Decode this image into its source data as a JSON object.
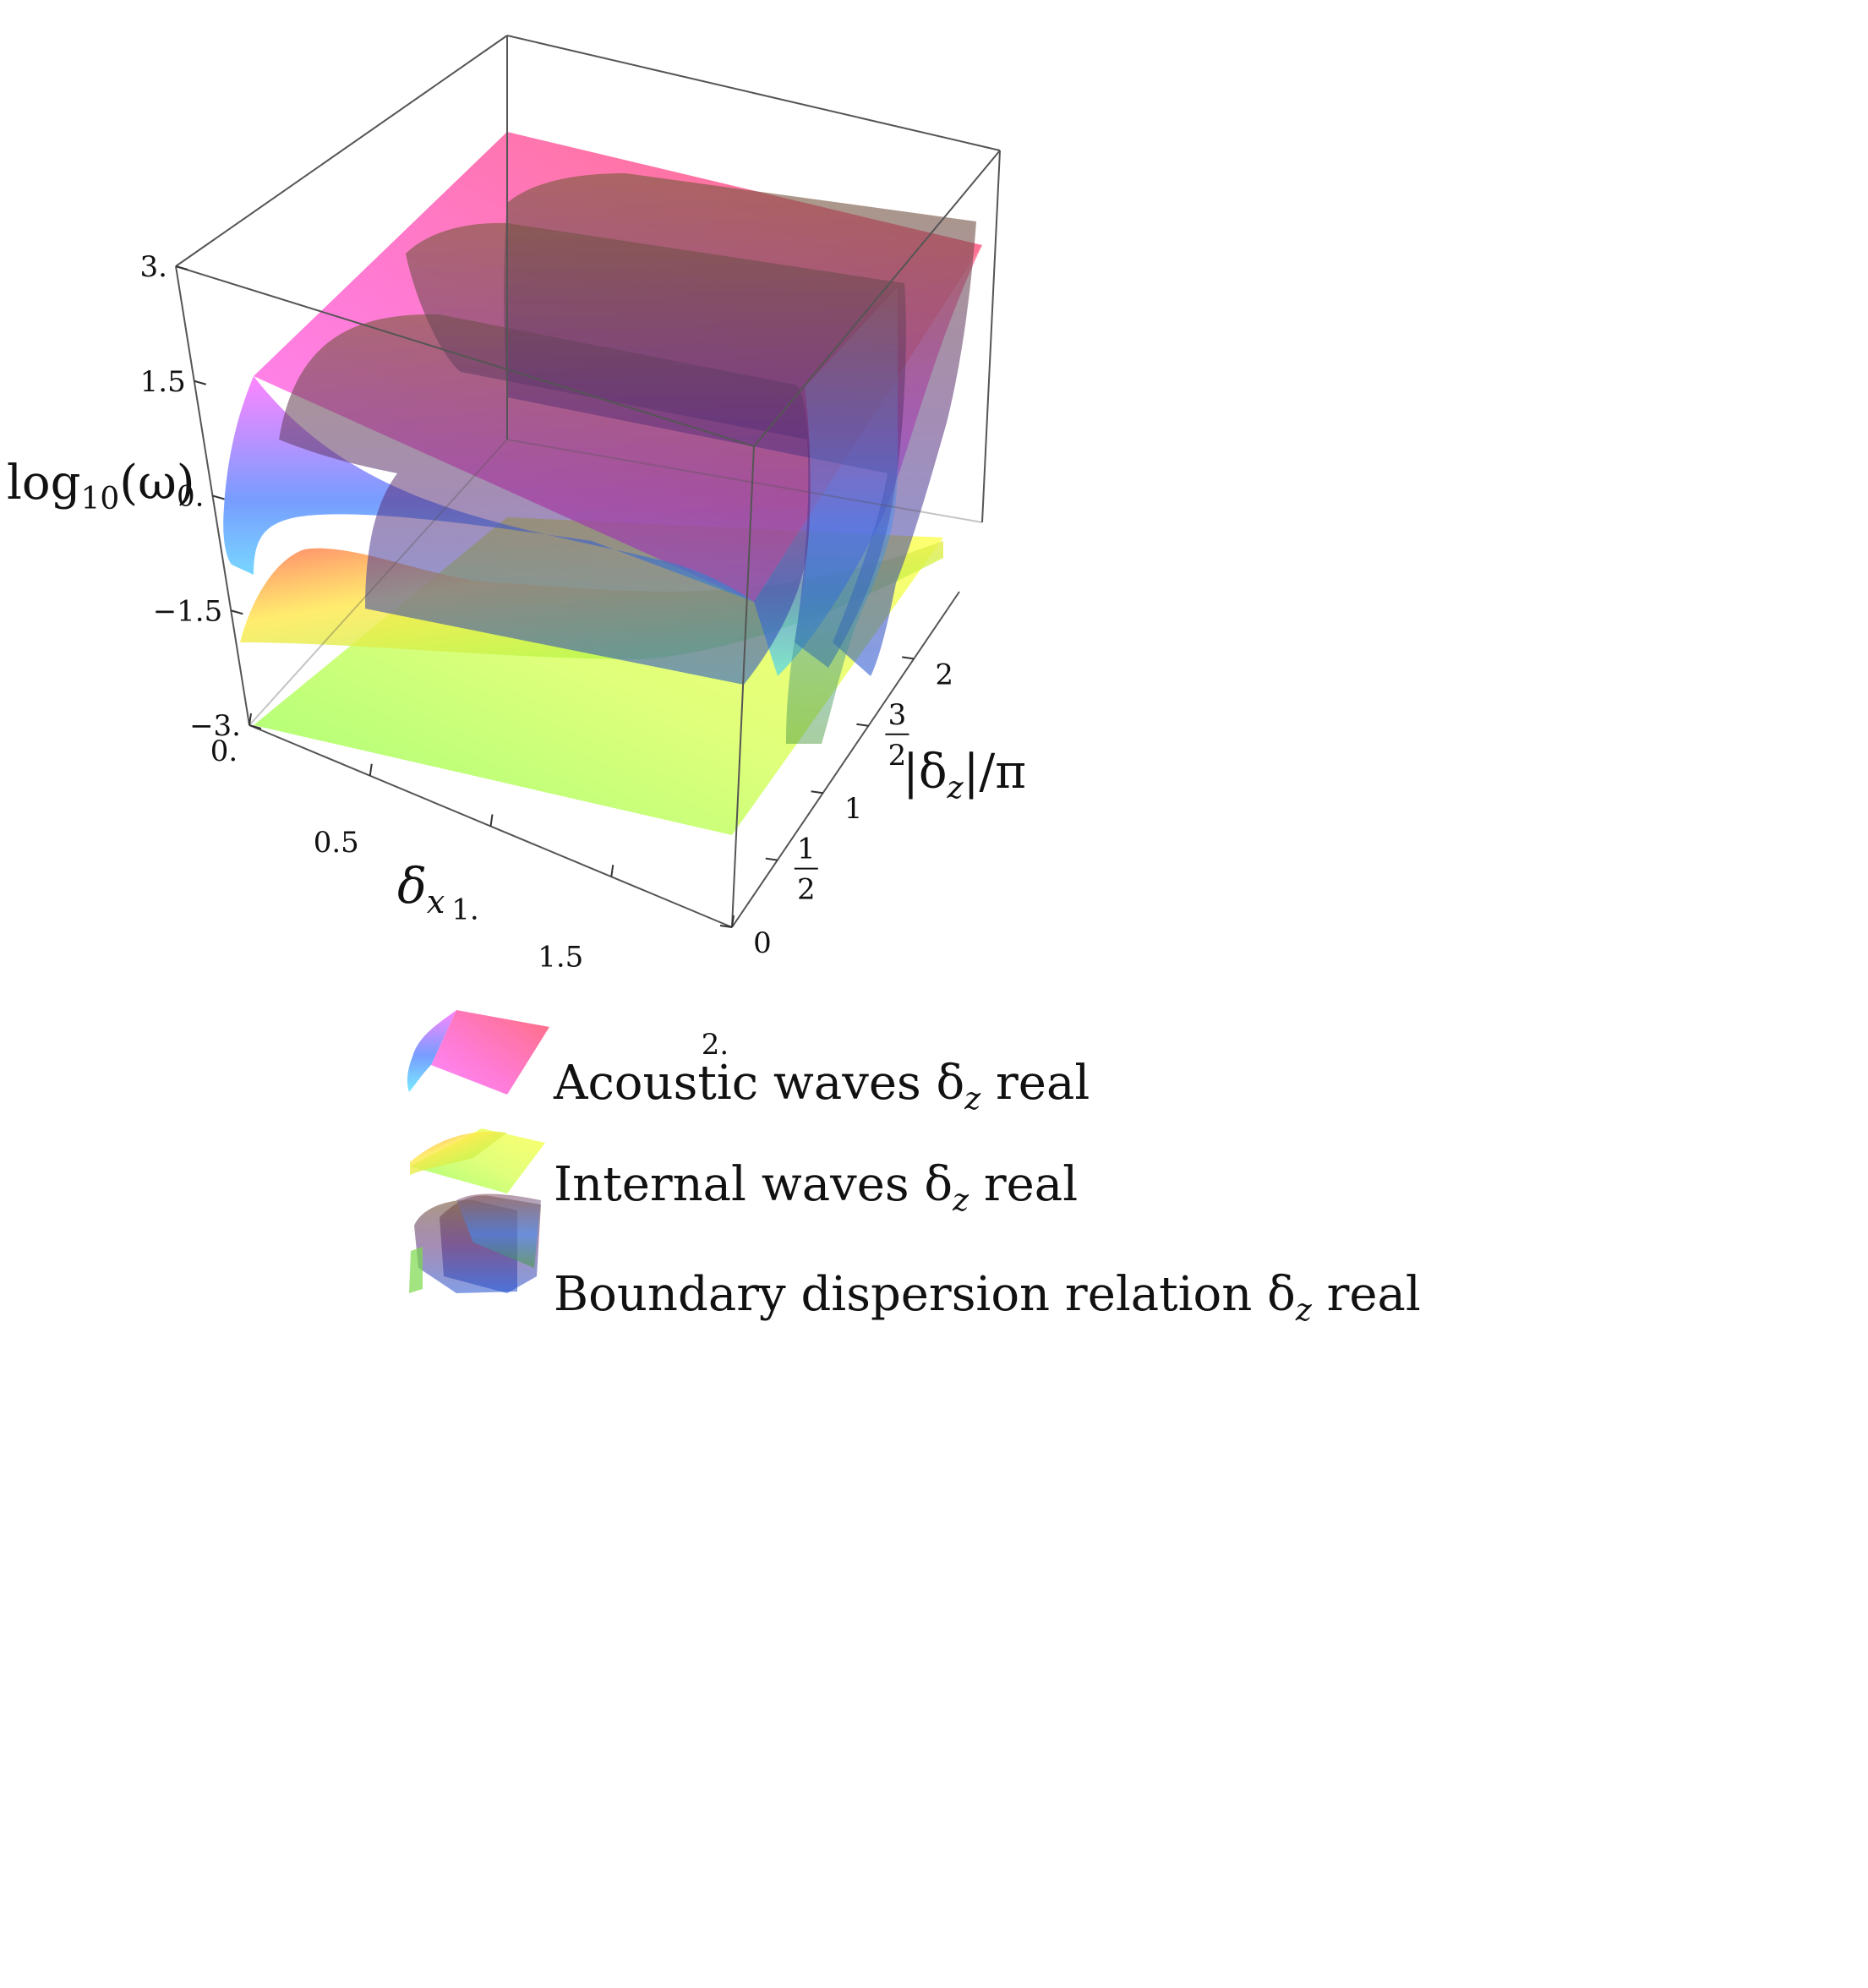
{
  "chart_data": {
    "type": "surface3d",
    "axes": {
      "x": {
        "label_main": "δ",
        "label_sub": "x",
        "range": [
          0,
          2
        ],
        "ticks": [
          "0.",
          "0.5",
          "1.",
          "1.5",
          "2."
        ],
        "tick_values": [
          0,
          0.5,
          1,
          1.5,
          2
        ]
      },
      "y": {
        "label": "|δ",
        "label_sub": "z",
        "label_tail": "|/π",
        "range": [
          0,
          2.5
        ],
        "ticks": [
          "0",
          "1",
          "2"
        ],
        "tick_values": [
          0,
          1,
          2
        ],
        "frac_ticks": [
          {
            "num": "1",
            "den": "2",
            "value": 0.5
          },
          {
            "num": "3",
            "den": "2",
            "value": 1.5
          }
        ]
      },
      "z": {
        "label_main": "log",
        "label_sub": "10",
        "label_tail": "(ω)",
        "range": [
          -3,
          3
        ],
        "ticks": [
          "−3.",
          "−1.5",
          "0.",
          "1.5",
          "3."
        ],
        "tick_values": [
          -3,
          -1.5,
          0,
          1.5,
          3
        ]
      }
    },
    "series": [
      {
        "name": "Acoustic waves δ",
        "name_sub": "z",
        "name_tail": " real",
        "color_top": "#ff4f7d",
        "color_mid": "#ff66ff",
        "color_low": "#3b7cff"
      },
      {
        "name": "Internal waves δ",
        "name_sub": "z",
        "name_tail": " real",
        "color_top": "#ffef40",
        "color_mid": "#a6ff5a",
        "color_low": "#ff7a55"
      },
      {
        "name": "Boundary dispersion relation δ",
        "name_sub": "z",
        "name_tail": " real",
        "color_top": "#8a6a4a",
        "color_mid": "#6d3f8f",
        "color_low": "#2b5bd6"
      }
    ]
  }
}
